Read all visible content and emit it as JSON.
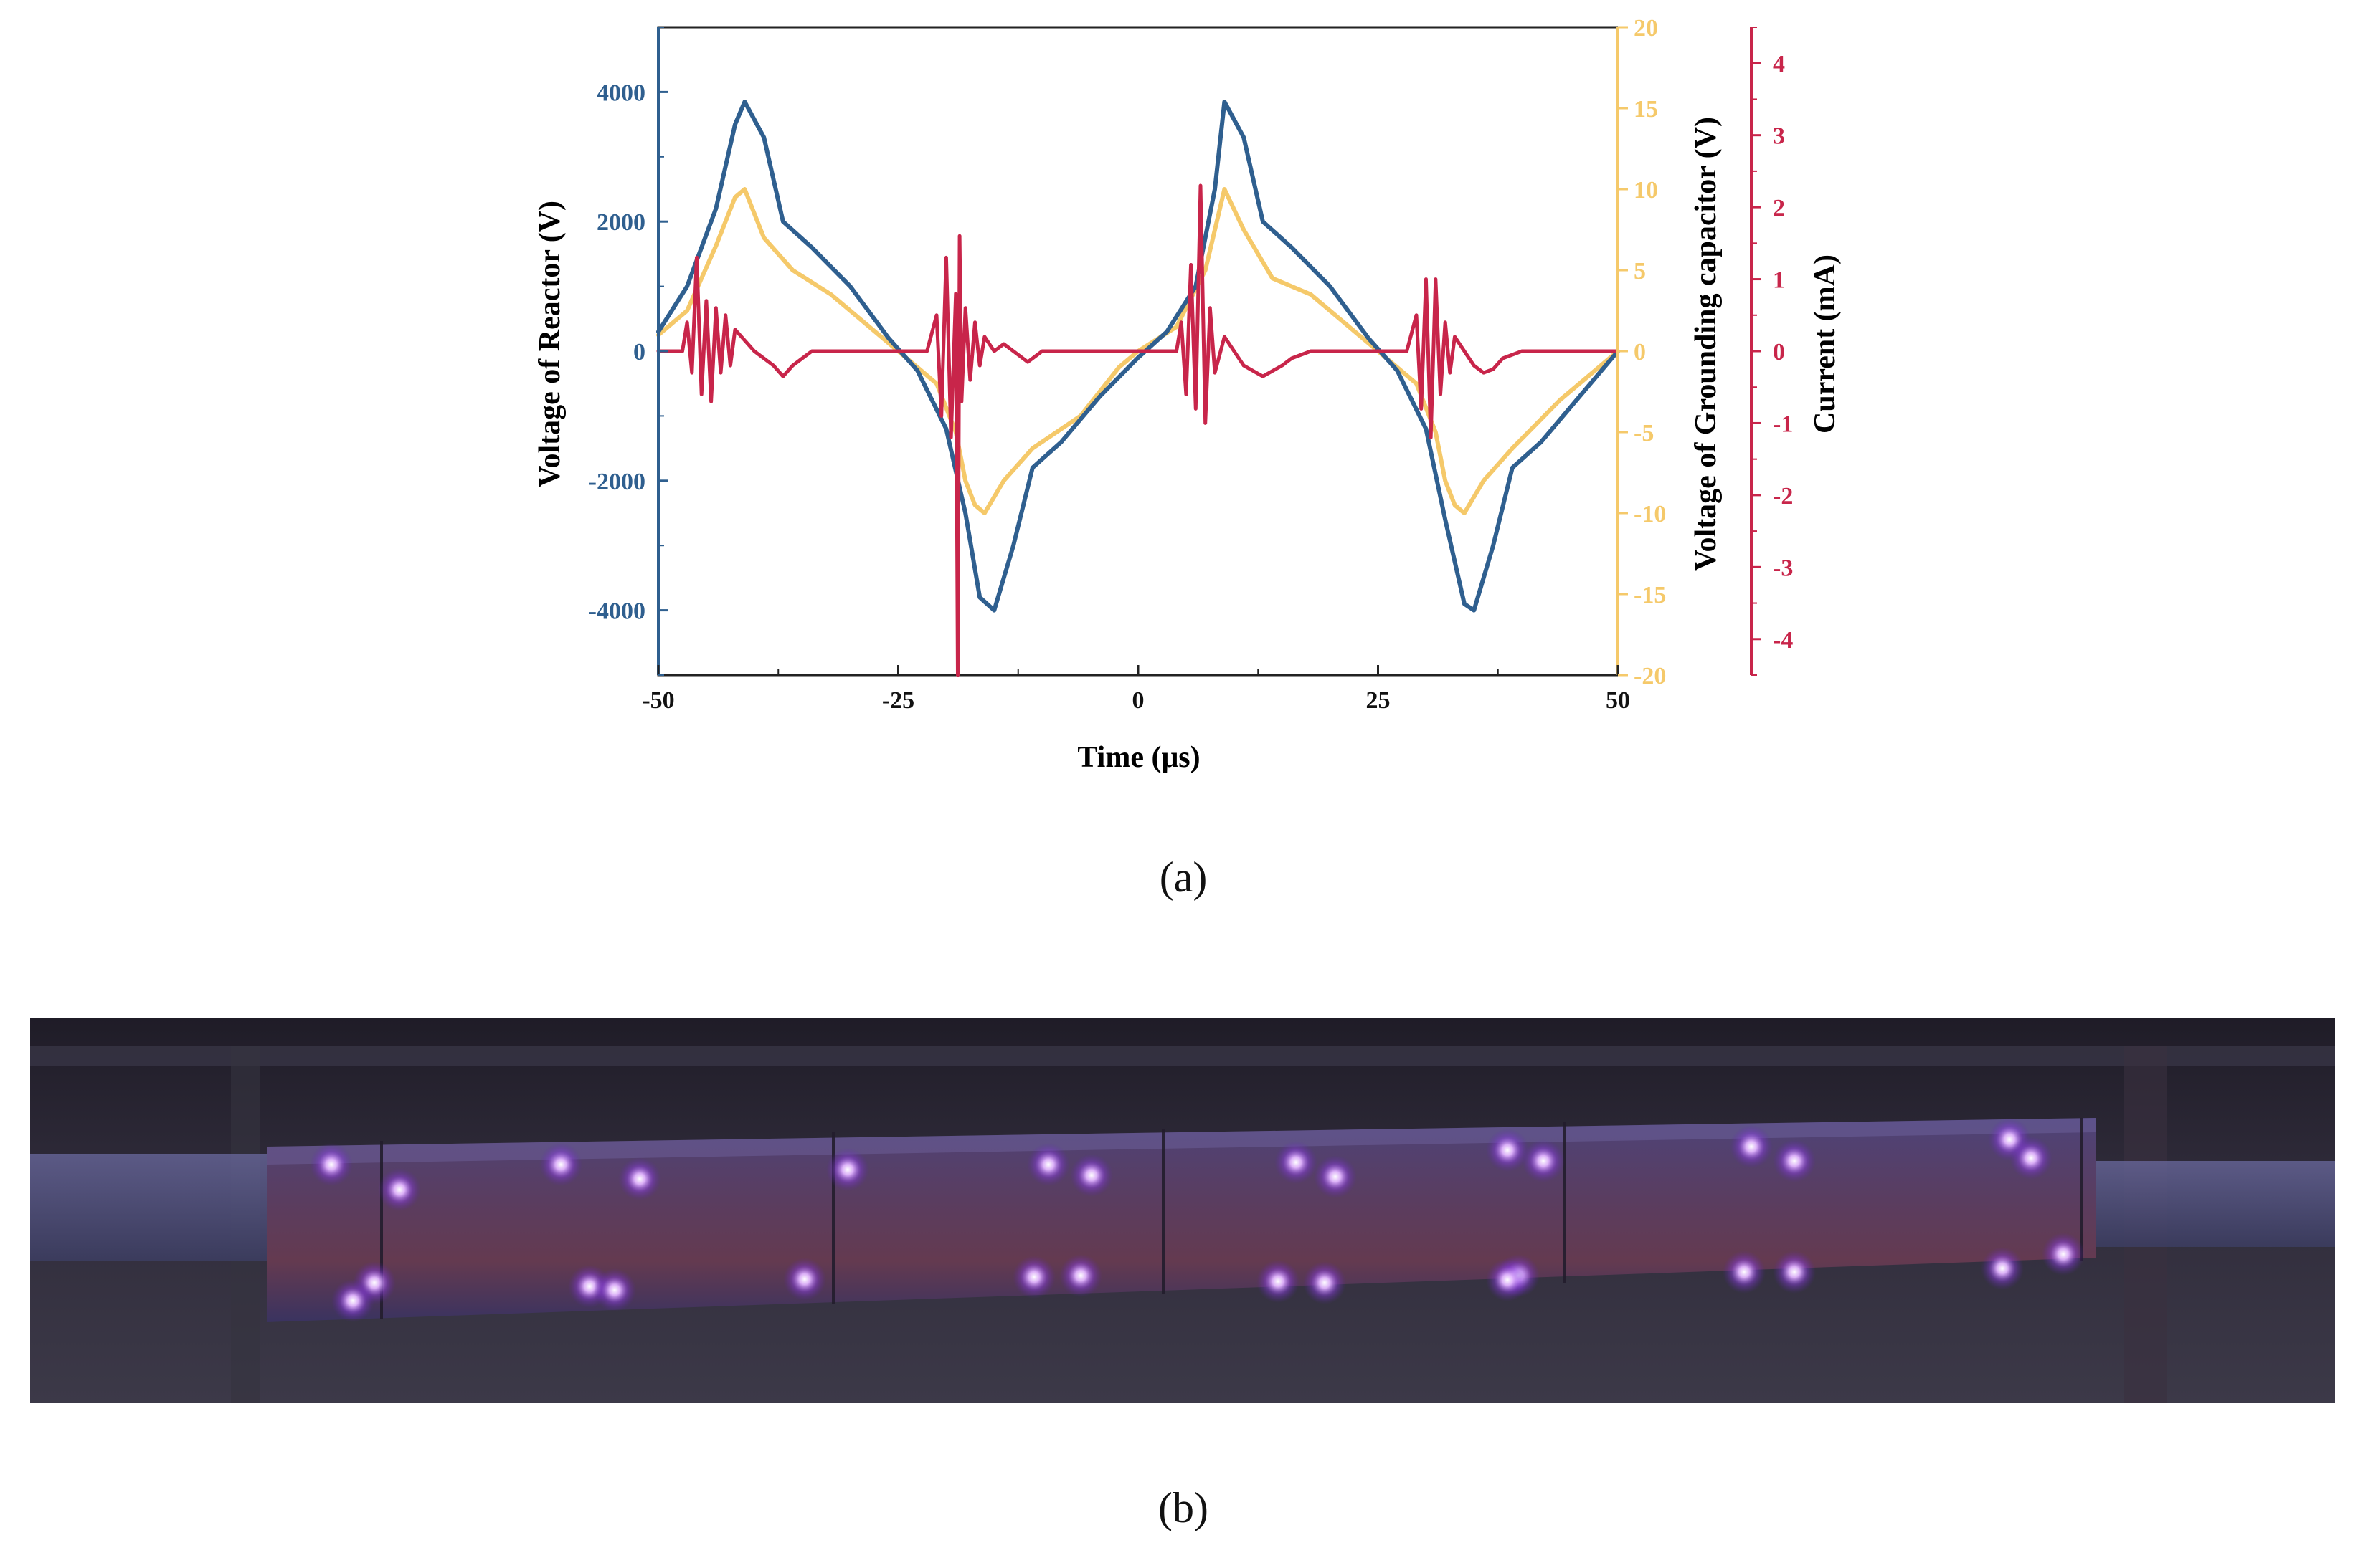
{
  "figure": {
    "caption_a": "(a)",
    "caption_b": "(b)"
  },
  "colors": {
    "voltage": "#2f5f8f",
    "ground": "#f5c96a",
    "current": "#c8254a",
    "axis": "#222222"
  },
  "chart_data": {
    "type": "line",
    "title": "",
    "xlabel": "Time (μs)",
    "xlim": [
      -50,
      50
    ],
    "xticks": [
      -50,
      -25,
      0,
      25,
      50
    ],
    "y_left": {
      "label": "Voltage of Reactor (V)",
      "lim": [
        -5000,
        5000
      ],
      "ticks": [
        -4000,
        -2000,
        0,
        2000,
        4000
      ]
    },
    "y_right": {
      "label": "Voltage of Grounding capacitor (V)",
      "lim": [
        -20,
        20
      ],
      "ticks": [
        -20,
        -15,
        -10,
        -5,
        0,
        5,
        10,
        15,
        20
      ]
    },
    "y_current": {
      "label": "Current (mA)",
      "lim": [
        -4.5,
        4.5
      ],
      "ticks": [
        -4,
        -3,
        -2,
        -1,
        0,
        1,
        2,
        3,
        4
      ]
    },
    "series": [
      {
        "name": "Voltage of Reactor",
        "axis": "left",
        "x": [
          -50,
          -47,
          -44,
          -42,
          -41,
          -39,
          -37,
          -34,
          -30,
          -26,
          -23,
          -20,
          -18,
          -16.5,
          -15,
          -13,
          -11,
          -8,
          -4,
          0,
          3,
          6,
          8,
          9,
          11,
          13,
          16,
          20,
          24,
          27,
          30,
          32,
          34,
          35,
          37,
          39,
          42,
          46,
          50
        ],
        "values": [
          300,
          1000,
          2200,
          3500,
          3850,
          3300,
          2000,
          1600,
          1000,
          200,
          -300,
          -1200,
          -2500,
          -3800,
          -4000,
          -3000,
          -1800,
          -1400,
          -700,
          -100,
          300,
          1000,
          2500,
          3850,
          3300,
          2000,
          1600,
          1000,
          200,
          -300,
          -1200,
          -2600,
          -3900,
          -4000,
          -3000,
          -1800,
          -1400,
          -700,
          0
        ]
      },
      {
        "name": "Voltage of Grounding capacitor",
        "axis": "right",
        "x": [
          -50,
          -47,
          -44,
          -42,
          -41,
          -39,
          -36,
          -32,
          -27,
          -24,
          -21,
          -19,
          -18,
          -17,
          -16,
          -14,
          -11,
          -6,
          -2,
          0,
          4,
          7,
          9,
          11,
          14,
          18,
          23,
          26,
          29,
          31,
          32,
          33,
          34,
          36,
          39,
          44,
          50
        ],
        "values": [
          1,
          2.5,
          6.5,
          9.5,
          10,
          7,
          5,
          3.5,
          1,
          -0.5,
          -2,
          -5,
          -8,
          -9.5,
          -10,
          -8,
          -6,
          -4,
          -1,
          0,
          1.5,
          5,
          10,
          7.5,
          4.5,
          3.5,
          1,
          -0.5,
          -2,
          -5,
          -8,
          -9.5,
          -10,
          -8,
          -6,
          -3,
          0
        ]
      },
      {
        "name": "Current",
        "axis": "current",
        "x": [
          -50,
          -47.5,
          -47,
          -46.5,
          -46,
          -45.5,
          -45,
          -44.5,
          -44,
          -43.5,
          -43,
          -42.5,
          -42,
          -40,
          -38,
          -37,
          -36,
          -35,
          -34,
          -32,
          -22,
          -21,
          -20.5,
          -20,
          -19.5,
          -19,
          -18.8,
          -18.6,
          -18.4,
          -18,
          -17.5,
          -17,
          -16.5,
          -16,
          -15,
          -14,
          -13,
          -11.5,
          -10,
          -8,
          -3,
          4,
          4.5,
          5,
          5.5,
          6,
          6.5,
          7,
          7.5,
          8,
          9,
          10,
          11,
          13,
          15,
          16,
          18,
          28,
          29,
          29.5,
          30,
          30.5,
          31,
          31.5,
          32,
          32.5,
          33,
          34,
          35,
          36,
          37,
          38,
          40,
          42,
          50
        ],
        "values": [
          0,
          0,
          0.4,
          -0.3,
          1.3,
          -0.6,
          0.7,
          -0.7,
          0.6,
          -0.3,
          0.5,
          -0.2,
          0.3,
          0,
          -0.2,
          -0.35,
          -0.2,
          -0.1,
          0,
          0,
          0,
          0.5,
          -0.9,
          1.3,
          -1.2,
          0.8,
          -4.5,
          1.6,
          -0.7,
          0.6,
          -0.4,
          0.4,
          -0.2,
          0.2,
          0,
          0.1,
          0,
          -0.15,
          0,
          0,
          0,
          0,
          0.4,
          -0.6,
          1.2,
          -0.8,
          2.3,
          -1.0,
          0.6,
          -0.3,
          0.2,
          0,
          -0.2,
          -0.35,
          -0.2,
          -0.1,
          0,
          0,
          0.5,
          -0.8,
          1.0,
          -1.2,
          1.0,
          -0.6,
          0.4,
          -0.3,
          0.2,
          0,
          -0.2,
          -0.3,
          -0.25,
          -0.1,
          0,
          0,
          0
        ]
      }
    ]
  }
}
